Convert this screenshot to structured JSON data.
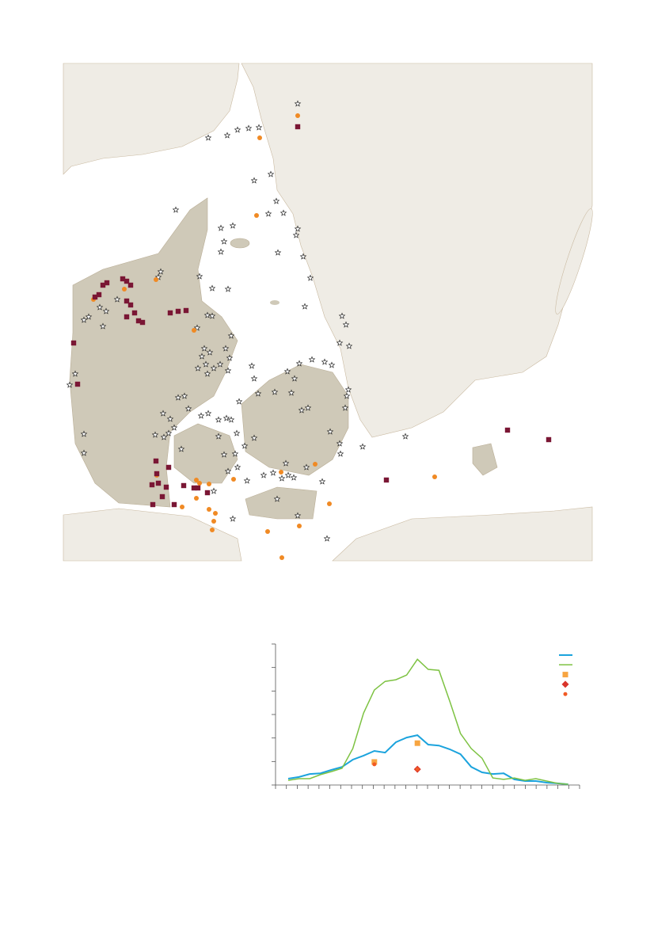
{
  "chart_data": {
    "type": "line",
    "categories": [
      null,
      null,
      null,
      null,
      null,
      null,
      null,
      null,
      null,
      null,
      null,
      null,
      null,
      null,
      null,
      null,
      null,
      null,
      null,
      null,
      null,
      null,
      null,
      null,
      null,
      null,
      null
    ],
    "ylim": [
      0,
      6
    ],
    "yticks": [
      0,
      1,
      2,
      3,
      4,
      5,
      6
    ],
    "series": [
      {
        "color": "#1ba3dd",
        "width": 2,
        "values": [
          0.27,
          0.34,
          0.47,
          0.5,
          0.64,
          0.77,
          1.08,
          1.25,
          1.45,
          1.38,
          1.82,
          2.02,
          2.12,
          1.72,
          1.68,
          1.52,
          1.31,
          0.77,
          0.54,
          0.47,
          0.5,
          0.24,
          0.17,
          0.17,
          0.1,
          0.07,
          0.03
        ]
      },
      {
        "color": "#7dc242",
        "width": 1.5,
        "values": [
          0.2,
          0.27,
          0.27,
          0.44,
          0.57,
          0.71,
          1.55,
          3.06,
          4.04,
          4.41,
          4.48,
          4.68,
          5.35,
          4.92,
          4.88,
          3.57,
          2.19,
          1.55,
          1.14,
          0.3,
          0.24,
          0.3,
          0.2,
          0.27,
          0.17,
          0.07,
          0.03
        ]
      },
      {
        "color": "#f7a541",
        "marker": "square",
        "values": [
          null,
          null,
          null,
          null,
          null,
          null,
          null,
          null,
          0.98,
          null,
          null,
          null,
          1.78,
          null,
          null,
          null,
          null,
          null,
          null,
          null,
          null,
          null,
          null,
          null,
          null,
          null,
          null
        ]
      },
      {
        "color": "#d9342b",
        "marker": "diamond",
        "values": [
          null,
          null,
          null,
          null,
          null,
          null,
          null,
          null,
          null,
          null,
          null,
          null,
          0.67,
          null,
          null,
          null,
          null,
          null,
          null,
          null,
          null,
          null,
          null,
          null,
          null,
          null,
          null
        ]
      },
      {
        "color": "#f15a24",
        "marker": "circle",
        "values": [
          null,
          null,
          null,
          null,
          null,
          null,
          null,
          null,
          0.88,
          null,
          null,
          null,
          0.67,
          null,
          null,
          null,
          null,
          null,
          null,
          null,
          null,
          null,
          null,
          null,
          null,
          null,
          null
        ]
      }
    ]
  }
}
